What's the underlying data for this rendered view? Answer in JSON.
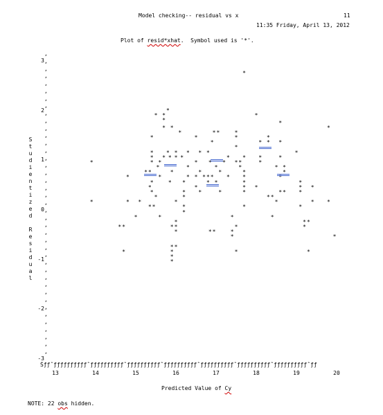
{
  "header": {
    "title": "Model checking-- residual vs x",
    "page_number": "11",
    "datetime": "11:35 Friday, April 13, 2012"
  },
  "plot_description": {
    "prefix": "Plot of ",
    "variables": "resid*xhat",
    "suffix": ".  Symbol used is '*'."
  },
  "y_axis_label_chars": [
    "S",
    "t",
    "u",
    "d",
    "i",
    "e",
    "n",
    "t",
    "i",
    "z",
    "e",
    "d",
    " ",
    "R",
    "e",
    "s",
    "i",
    "d",
    "u",
    "a",
    "l"
  ],
  "y_ticks": [
    "3",
    "2",
    "1",
    "0",
    "-1",
    "-2",
    "-3"
  ],
  "axis_rule_text": "Šƒƒˆƒƒƒƒƒƒƒƒƒƒˆƒƒƒƒƒƒƒƒƒƒˆƒƒƒƒƒƒƒƒƒƒˆƒƒƒƒƒƒƒƒƒƒˆƒƒƒƒƒƒƒƒƒƒˆƒƒƒƒƒƒƒƒƒƒˆƒƒƒƒƒƒƒƒƒƒˆƒƒ",
  "x_ticks": [
    "13",
    "14",
    "15",
    "16",
    "17",
    "18",
    "19",
    "20"
  ],
  "x_axis_label": {
    "prefix": "Predicted Value of ",
    "variable": "Cy"
  },
  "note": {
    "prefix": "NOTE: 22 ",
    "word": "obs",
    "suffix": " hidden."
  },
  "symbol": "*",
  "chart_data": {
    "type": "scatter",
    "title": "Model checking-- residual vs x",
    "xlabel": "Predicted Value of Cy",
    "ylabel": "Studentized Residual",
    "xlim": [
      12.9,
      20.2
    ],
    "ylim": [
      -3,
      3
    ],
    "x_ticks": [
      13,
      14,
      15,
      16,
      17,
      18,
      19,
      20
    ],
    "y_ticks": [
      -3,
      -2,
      -1,
      0,
      1,
      2,
      3
    ],
    "points": [
      [
        17.7,
        2.75
      ],
      [
        15.8,
        2.0
      ],
      [
        15.5,
        1.9
      ],
      [
        15.7,
        1.9
      ],
      [
        18.0,
        1.9
      ],
      [
        15.7,
        1.8
      ],
      [
        18.6,
        1.75
      ],
      [
        15.7,
        1.65
      ],
      [
        15.9,
        1.65
      ],
      [
        19.8,
        1.65
      ],
      [
        16.1,
        1.55
      ],
      [
        16.95,
        1.55
      ],
      [
        17.05,
        1.55
      ],
      [
        17.5,
        1.55
      ],
      [
        15.4,
        1.45
      ],
      [
        16.5,
        1.45
      ],
      [
        17.5,
        1.45
      ],
      [
        18.3,
        1.45
      ],
      [
        16.9,
        1.35
      ],
      [
        18.1,
        1.35
      ],
      [
        18.3,
        1.35
      ],
      [
        18.6,
        1.35
      ],
      [
        17.5,
        1.25
      ],
      [
        15.4,
        1.15
      ],
      [
        15.8,
        1.15
      ],
      [
        16.0,
        1.15
      ],
      [
        16.3,
        1.15
      ],
      [
        16.6,
        1.15
      ],
      [
        16.8,
        1.15
      ],
      [
        19.0,
        1.15
      ],
      [
        15.4,
        1.05
      ],
      [
        15.7,
        1.05
      ],
      [
        15.85,
        1.05
      ],
      [
        16.0,
        1.05
      ],
      [
        16.15,
        1.05
      ],
      [
        17.3,
        1.05
      ],
      [
        17.7,
        1.05
      ],
      [
        18.1,
        1.05
      ],
      [
        18.6,
        1.05
      ],
      [
        13.9,
        0.95
      ],
      [
        15.4,
        0.95
      ],
      [
        15.6,
        0.95
      ],
      [
        16.5,
        0.95
      ],
      [
        16.85,
        0.95
      ],
      [
        17.2,
        0.95
      ],
      [
        17.5,
        0.95
      ],
      [
        17.6,
        0.95
      ],
      [
        18.1,
        0.95
      ],
      [
        15.55,
        0.85
      ],
      [
        16.3,
        0.85
      ],
      [
        17.0,
        0.85
      ],
      [
        17.6,
        0.85
      ],
      [
        18.5,
        0.85
      ],
      [
        18.7,
        0.85
      ],
      [
        15.25,
        0.75
      ],
      [
        15.35,
        0.75
      ],
      [
        15.9,
        0.75
      ],
      [
        16.6,
        0.75
      ],
      [
        17.1,
        0.75
      ],
      [
        17.7,
        0.75
      ],
      [
        18.7,
        0.75
      ],
      [
        14.8,
        0.65
      ],
      [
        15.6,
        0.65
      ],
      [
        16.3,
        0.65
      ],
      [
        16.5,
        0.65
      ],
      [
        16.7,
        0.65
      ],
      [
        16.8,
        0.65
      ],
      [
        16.9,
        0.65
      ],
      [
        17.3,
        0.65
      ],
      [
        17.7,
        0.65
      ],
      [
        18.6,
        0.65
      ],
      [
        15.4,
        0.55
      ],
      [
        15.85,
        0.55
      ],
      [
        16.2,
        0.55
      ],
      [
        16.8,
        0.55
      ],
      [
        17.0,
        0.55
      ],
      [
        17.7,
        0.55
      ],
      [
        19.1,
        0.55
      ],
      [
        15.35,
        0.45
      ],
      [
        16.5,
        0.45
      ],
      [
        17.7,
        0.45
      ],
      [
        18.0,
        0.45
      ],
      [
        19.1,
        0.45
      ],
      [
        19.4,
        0.45
      ],
      [
        15.4,
        0.35
      ],
      [
        16.2,
        0.35
      ],
      [
        16.6,
        0.35
      ],
      [
        17.1,
        0.35
      ],
      [
        17.7,
        0.35
      ],
      [
        18.6,
        0.35
      ],
      [
        18.7,
        0.35
      ],
      [
        19.1,
        0.35
      ],
      [
        15.5,
        0.25
      ],
      [
        16.2,
        0.25
      ],
      [
        18.3,
        0.25
      ],
      [
        18.4,
        0.25
      ],
      [
        13.9,
        0.15
      ],
      [
        14.8,
        0.15
      ],
      [
        15.1,
        0.15
      ],
      [
        16.0,
        0.15
      ],
      [
        18.5,
        0.15
      ],
      [
        19.4,
        0.15
      ],
      [
        19.8,
        0.15
      ],
      [
        15.35,
        0.05
      ],
      [
        15.45,
        0.05
      ],
      [
        16.2,
        0.05
      ],
      [
        17.7,
        0.05
      ],
      [
        19.1,
        0.05
      ],
      [
        16.2,
        -0.05
      ],
      [
        15.0,
        -0.15
      ],
      [
        15.6,
        -0.15
      ],
      [
        17.4,
        -0.15
      ],
      [
        18.4,
        -0.15
      ],
      [
        16.0,
        -0.25
      ],
      [
        19.2,
        -0.25
      ],
      [
        19.3,
        -0.25
      ],
      [
        14.6,
        -0.35
      ],
      [
        14.7,
        -0.35
      ],
      [
        15.9,
        -0.35
      ],
      [
        16.0,
        -0.35
      ],
      [
        17.5,
        -0.35
      ],
      [
        19.2,
        -0.35
      ],
      [
        16.0,
        -0.45
      ],
      [
        16.85,
        -0.45
      ],
      [
        16.95,
        -0.45
      ],
      [
        17.4,
        -0.45
      ],
      [
        19.95,
        -0.55
      ],
      [
        17.4,
        -0.55
      ],
      [
        15.9,
        -0.75
      ],
      [
        16.0,
        -0.75
      ],
      [
        14.7,
        -0.85
      ],
      [
        15.9,
        -0.85
      ],
      [
        17.5,
        -0.85
      ],
      [
        19.3,
        -0.85
      ],
      [
        15.9,
        -0.95
      ],
      [
        15.9,
        -1.05
      ]
    ]
  }
}
